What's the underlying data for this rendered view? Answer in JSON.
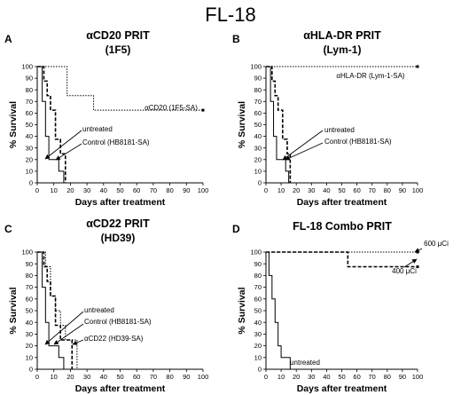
{
  "figure_title": "FL-18",
  "chart_data": [
    {
      "panel": "A",
      "type": "line",
      "step": true,
      "title": "αCD20 PRIT",
      "subtitle": "(1F5)",
      "xlabel": "Days after treatment",
      "ylabel": "% Survival",
      "xlim": [
        0,
        100
      ],
      "ylim": [
        0,
        100
      ],
      "xticks": [
        "0",
        "10",
        "20",
        "30",
        "40",
        "50",
        "60",
        "70",
        "80",
        "90",
        "100"
      ],
      "yticks": [
        "0",
        "10",
        "20",
        "30",
        "40",
        "50",
        "60",
        "70",
        "80",
        "90",
        "100"
      ],
      "series": [
        {
          "name": "αCD20 (1F5-SA)",
          "style": "dotted",
          "x": [
            0,
            7,
            18,
            34,
            100
          ],
          "y": [
            100,
            100,
            75,
            62.5,
            62.5
          ]
        },
        {
          "name": "Control (HB8181-SA)",
          "style": "dashed",
          "x": [
            0,
            4,
            6,
            8,
            11,
            14,
            17
          ],
          "y": [
            100,
            87.5,
            75,
            62.5,
            37.5,
            25,
            0
          ]
        },
        {
          "name": "untreated",
          "style": "solid",
          "x": [
            0,
            3,
            5,
            7,
            10,
            13,
            16
          ],
          "y": [
            100,
            70,
            40,
            20,
            20,
            10,
            0
          ]
        }
      ],
      "annotations": [
        {
          "text": "αCD20 (1F5-SA)",
          "series": 0
        },
        {
          "text": "untreated",
          "series": 2
        },
        {
          "text": "Control (HB8181-SA)",
          "series": 1
        }
      ]
    },
    {
      "panel": "B",
      "type": "line",
      "step": true,
      "title": "αHLA-DR PRIT",
      "subtitle": "(Lym-1)",
      "xlabel": "Days after treatment",
      "ylabel": "% Survival",
      "xlim": [
        0,
        100
      ],
      "ylim": [
        0,
        100
      ],
      "xticks": [
        "0",
        "10",
        "20",
        "30",
        "40",
        "50",
        "60",
        "70",
        "80",
        "90",
        "100"
      ],
      "yticks": [
        "0",
        "10",
        "20",
        "30",
        "40",
        "50",
        "60",
        "70",
        "80",
        "90",
        "100"
      ],
      "series": [
        {
          "name": "αHLA-DR (Lym-1-SA)",
          "style": "dotted",
          "x": [
            0,
            100
          ],
          "y": [
            100,
            100
          ]
        },
        {
          "name": "Control (HB8181-SA)",
          "style": "dashed",
          "x": [
            0,
            4,
            6,
            8,
            11,
            14,
            16
          ],
          "y": [
            100,
            87.5,
            75,
            62.5,
            37.5,
            25,
            0
          ]
        },
        {
          "name": "untreated",
          "style": "solid",
          "x": [
            0,
            3,
            5,
            7,
            10,
            13,
            15
          ],
          "y": [
            100,
            70,
            40,
            20,
            20,
            10,
            0
          ]
        }
      ],
      "annotations": [
        {
          "text": "αHLA-DR (Lym-1-SA)",
          "series": 0
        },
        {
          "text": "untreated",
          "series": 2
        },
        {
          "text": "Control (HB8181-SA)",
          "series": 1
        }
      ]
    },
    {
      "panel": "C",
      "type": "line",
      "step": true,
      "title": "αCD22 PRIT",
      "subtitle": "(HD39)",
      "xlabel": "Days after treatment",
      "ylabel": "% Survival",
      "xlim": [
        0,
        100
      ],
      "ylim": [
        0,
        100
      ],
      "xticks": [
        "0",
        "10",
        "20",
        "30",
        "40",
        "50",
        "60",
        "70",
        "80",
        "90",
        "100"
      ],
      "yticks": [
        "0",
        "10",
        "20",
        "30",
        "40",
        "50",
        "60",
        "70",
        "80",
        "90",
        "100"
      ],
      "series": [
        {
          "name": "αCD22 (HD39-SA)",
          "style": "dotted",
          "x": [
            0,
            5,
            8,
            11,
            14,
            17,
            24
          ],
          "y": [
            100,
            87.5,
            62.5,
            50,
            37.5,
            25,
            0
          ]
        },
        {
          "name": "Control (HB8181-SA)",
          "style": "dashed",
          "x": [
            0,
            4,
            6,
            8,
            11,
            14,
            21
          ],
          "y": [
            100,
            87.5,
            75,
            62.5,
            37.5,
            25,
            0
          ]
        },
        {
          "name": "untreated",
          "style": "solid",
          "x": [
            0,
            3,
            5,
            7,
            10,
            13,
            16
          ],
          "y": [
            100,
            70,
            40,
            20,
            20,
            10,
            0
          ]
        }
      ],
      "annotations": [
        {
          "text": "untreated",
          "series": 2
        },
        {
          "text": "Control (HB8181-SA)",
          "series": 1
        },
        {
          "text": "αCD22 (HD39-SA)",
          "series": 0
        }
      ]
    },
    {
      "panel": "D",
      "type": "line",
      "step": true,
      "title": "FL-18  Combo PRIT",
      "subtitle": "",
      "xlabel": "Days after treatment",
      "ylabel": "% Survival",
      "xlim": [
        0,
        100
      ],
      "ylim": [
        0,
        100
      ],
      "xticks": [
        "0",
        "10",
        "20",
        "30",
        "40",
        "50",
        "60",
        "70",
        "80",
        "90",
        "100"
      ],
      "yticks": [
        "0",
        "10",
        "20",
        "30",
        "40",
        "50",
        "60",
        "70",
        "80",
        "90",
        "100"
      ],
      "series": [
        {
          "name": "600 μCi",
          "style": "dotted",
          "x": [
            0,
            100
          ],
          "y": [
            100,
            100
          ]
        },
        {
          "name": "400 μCi",
          "style": "dashed",
          "x": [
            0,
            54,
            100
          ],
          "y": [
            100,
            87.5,
            87.5
          ]
        },
        {
          "name": "untreated",
          "style": "solid",
          "x": [
            0,
            2,
            4,
            6,
            8,
            10,
            16
          ],
          "y": [
            100,
            80,
            60,
            40,
            20,
            10,
            0
          ]
        }
      ],
      "annotations": [
        {
          "text": "600 μCi",
          "series": 0
        },
        {
          "text": "400 μCi",
          "series": 1
        },
        {
          "text": "untreated",
          "series": 2
        }
      ]
    }
  ]
}
